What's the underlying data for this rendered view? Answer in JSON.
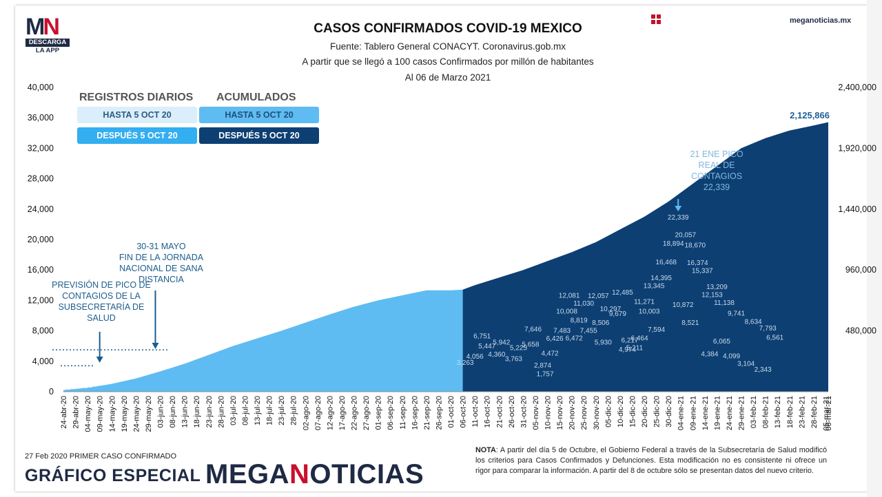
{
  "header": {
    "title": "CASOS CONFIRMADOS COVID-19 MEXICO",
    "source": "Fuente: Tablero General CONACYT. Coronavirus.gob.mx",
    "criterion": "A partir que se llegó a 100 casos Confirmados por millón de habitantes",
    "date": "Al 06 de Marzo 2021",
    "site": "meganoticias.mx"
  },
  "logo": {
    "mark": "MN",
    "line1": "DESCARGA",
    "line2": "LA APP"
  },
  "legend": {
    "daily_title": "REGISTROS DIARIOS",
    "cumulative_title": "ACUMULADOS",
    "daily_before": "HASTA 5 OCT 20",
    "daily_after": "DESPUÉS 5 OCT 20",
    "cum_before": "HASTA 5 OCT 20",
    "cum_after": "DESPUÉS 5 OCT 20"
  },
  "colors": {
    "daily_before": "#dbeefb",
    "daily_after": "#33aef0",
    "cum_before": "#5ebcf2",
    "cum_after": "#0d3f73",
    "bar_before": "#bfe2f7",
    "bar_after": "#1f80c8",
    "annotation": "#1c5d8c",
    "brand_red": "#c8102e",
    "navy": "#1f2a44"
  },
  "chart_data": {
    "type": "bar",
    "x_ticks": [
      "24-abr-20",
      "29-abr-20",
      "04-may-20",
      "09-may-20",
      "14-may-20",
      "19-may-20",
      "24-may-20",
      "29-may-20",
      "03-jun-20",
      "08-jun-20",
      "13-jun-20",
      "18-jun-20",
      "23-jun-20",
      "28-jun-20",
      "03-jul-20",
      "08-jul-20",
      "13-jul-20",
      "18-jul-20",
      "23-jul-20",
      "28-jul-20",
      "02-ago-20",
      "07-ago-20",
      "12-ago-20",
      "17-ago-20",
      "22-ago-20",
      "27-ago-20",
      "01-sep-20",
      "06-sep-20",
      "11-sep-20",
      "16-sep-20",
      "21-sep-20",
      "26-sep-20",
      "01-oct-20",
      "06-oct-20",
      "11-oct-20",
      "16-oct-20",
      "21-oct-20",
      "26-oct-20",
      "31-oct-20",
      "05-nov-20",
      "10-nov-20",
      "15-nov-20",
      "20-nov-20",
      "25-nov-20",
      "30-nov-20",
      "05-dic-20",
      "10-dic-20",
      "15-dic-20",
      "20-dic-20",
      "25-dic-20",
      "30-dic-20",
      "04-ene-21",
      "09-ene-21",
      "14-ene-21",
      "19-ene-21",
      "24-ene-21",
      "29-ene-21",
      "03-feb-21",
      "08-feb-21",
      "13-feb-21",
      "18-feb-21",
      "23-feb-21",
      "28-feb-21",
      "05-mar-21",
      "06-mar-21"
    ],
    "y_left": {
      "label": "Registros diarios",
      "ticks": [
        "0",
        "4,000",
        "8,000",
        "12,000",
        "16,000",
        "20,000",
        "24,000",
        "28,000",
        "32,000",
        "36,000",
        "40,000"
      ],
      "max": 40000
    },
    "y_right": {
      "label": "Acumulados",
      "ticks": [
        "480,000",
        "960,000",
        "1,440,000",
        "1,920,000",
        "2,400,000"
      ],
      "max": 2400000
    },
    "cumulative": {
      "x": [
        0,
        10,
        20,
        30,
        40,
        50,
        60,
        70,
        80,
        90,
        100,
        110,
        120,
        130,
        140,
        150,
        160,
        165,
        170,
        180,
        190,
        200,
        210,
        220,
        230,
        240,
        250,
        260,
        270,
        280,
        290,
        300,
        310,
        316
      ],
      "y": [
        12000,
        30000,
        62000,
        105000,
        160000,
        220000,
        290000,
        360000,
        420000,
        480000,
        545000,
        610000,
        670000,
        720000,
        760000,
        800000,
        800000,
        805000,
        840000,
        900000,
        960000,
        1030000,
        1100000,
        1180000,
        1280000,
        1380000,
        1500000,
        1640000,
        1780000,
        1920000,
        2000000,
        2060000,
        2100000,
        2125866
      ],
      "final_label": "2,125,866"
    },
    "daily_labels": [
      {
        "d": 166,
        "v": "3,263",
        "n": 3263
      },
      {
        "d": 170,
        "v": "4,056",
        "n": 4056
      },
      {
        "d": 173,
        "v": "6,751",
        "n": 6751
      },
      {
        "d": 175,
        "v": "5,447",
        "n": 5447
      },
      {
        "d": 179,
        "v": "4,360",
        "n": 4360
      },
      {
        "d": 181,
        "v": "5,942",
        "n": 5942
      },
      {
        "d": 186,
        "v": "3,763",
        "n": 3763
      },
      {
        "d": 188,
        "v": "5,225",
        "n": 5225
      },
      {
        "d": 193,
        "v": "5,658",
        "n": 5658
      },
      {
        "d": 194,
        "v": "7,646",
        "n": 7646
      },
      {
        "d": 198,
        "v": "2,874",
        "n": 2874
      },
      {
        "d": 199,
        "v": "1,757",
        "n": 1757
      },
      {
        "d": 201,
        "v": "4,472",
        "n": 4472
      },
      {
        "d": 203,
        "v": "6,426",
        "n": 6426
      },
      {
        "d": 206,
        "v": "7,483",
        "n": 7483
      },
      {
        "d": 208,
        "v": "10,008",
        "n": 10008
      },
      {
        "d": 209,
        "v": "12,081",
        "n": 12081
      },
      {
        "d": 211,
        "v": "6,472",
        "n": 6472
      },
      {
        "d": 213,
        "v": "8,819",
        "n": 8819
      },
      {
        "d": 215,
        "v": "11,030",
        "n": 11030
      },
      {
        "d": 217,
        "v": "7,455",
        "n": 7455
      },
      {
        "d": 221,
        "v": "12,057",
        "n": 12057
      },
      {
        "d": 222,
        "v": "8,506",
        "n": 8506
      },
      {
        "d": 223,
        "v": "5,930",
        "n": 5930
      },
      {
        "d": 226,
        "v": "10,297",
        "n": 10297
      },
      {
        "d": 229,
        "v": "9,679",
        "n": 9679
      },
      {
        "d": 231,
        "v": "12,485",
        "n": 12485
      },
      {
        "d": 233,
        "v": "4,974",
        "n": 4974
      },
      {
        "d": 234,
        "v": "6,217",
        "n": 6217
      },
      {
        "d": 236,
        "v": "5,211",
        "n": 5211
      },
      {
        "d": 238,
        "v": "6,464",
        "n": 6464
      },
      {
        "d": 240,
        "v": "11,271",
        "n": 11271
      },
      {
        "d": 242,
        "v": "10,003",
        "n": 10003
      },
      {
        "d": 244,
        "v": "13,345",
        "n": 13345
      },
      {
        "d": 245,
        "v": "7,594",
        "n": 7594
      },
      {
        "d": 247,
        "v": "14,395",
        "n": 14395
      },
      {
        "d": 249,
        "v": "16,468",
        "n": 16468
      },
      {
        "d": 252,
        "v": "18,894",
        "n": 18894
      },
      {
        "d": 254,
        "v": "22,339",
        "n": 22339
      },
      {
        "d": 256,
        "v": "10,872",
        "n": 10872
      },
      {
        "d": 257,
        "v": "20,057",
        "n": 20057
      },
      {
        "d": 259,
        "v": "8,521",
        "n": 8521
      },
      {
        "d": 261,
        "v": "18,670",
        "n": 18670
      },
      {
        "d": 262,
        "v": "16,374",
        "n": 16374
      },
      {
        "d": 264,
        "v": "15,337",
        "n": 15337
      },
      {
        "d": 267,
        "v": "4,384",
        "n": 4384
      },
      {
        "d": 268,
        "v": "12,153",
        "n": 12153
      },
      {
        "d": 270,
        "v": "13,209",
        "n": 13209
      },
      {
        "d": 272,
        "v": "6,065",
        "n": 6065
      },
      {
        "d": 273,
        "v": "11,138",
        "n": 11138
      },
      {
        "d": 276,
        "v": "4,099",
        "n": 4099
      },
      {
        "d": 278,
        "v": "9,741",
        "n": 9741
      },
      {
        "d": 282,
        "v": "3,104",
        "n": 3104
      },
      {
        "d": 285,
        "v": "8,634",
        "n": 8634
      },
      {
        "d": 289,
        "v": "2,343",
        "n": 2343
      },
      {
        "d": 291,
        "v": "7,793",
        "n": 7793
      },
      {
        "d": 294,
        "v": "6,561",
        "n": 6561
      }
    ],
    "split_day": 165,
    "annotations": [
      {
        "id": "prevision",
        "text": [
          "PREVISIÓN DE PICO DE",
          "CONTAGIOS DE LA",
          "SUBSECRETARÍA DE",
          "SALUD"
        ],
        "day": 15,
        "value": 3400
      },
      {
        "id": "jornada",
        "text": [
          "30-31 MAYO",
          "FIN DE LA JORNADA",
          "NACIONAL DE SANA",
          "DISTANCIA"
        ],
        "day": 38,
        "value": 5500
      },
      {
        "id": "pico",
        "text": [
          "21 ENE PICO",
          "REAL DE",
          "CONTAGIOS",
          "22,339"
        ],
        "day": 254,
        "value": 23700
      }
    ]
  },
  "footer": {
    "first_case": "27 Feb 2020 PRIMER CASO CONFIRMADO",
    "grafico": "GRÁFICO ESPECIAL",
    "brand_a": "MEGA",
    "brand_b": "N",
    "brand_c": "OTICIAS",
    "note_label": "NOTA",
    "note_text": ": A partir del día 5 de Octubre, el Gobierno Federal a través de la Subsecretaría de Salud modificó los criterios para Casos Confirmados y Defunciones. Esta modificación no es consistente ni ofrece un rigor para comparar la información. A partir del 8 de octubre sólo se presentan datos del nuevo criterio."
  }
}
